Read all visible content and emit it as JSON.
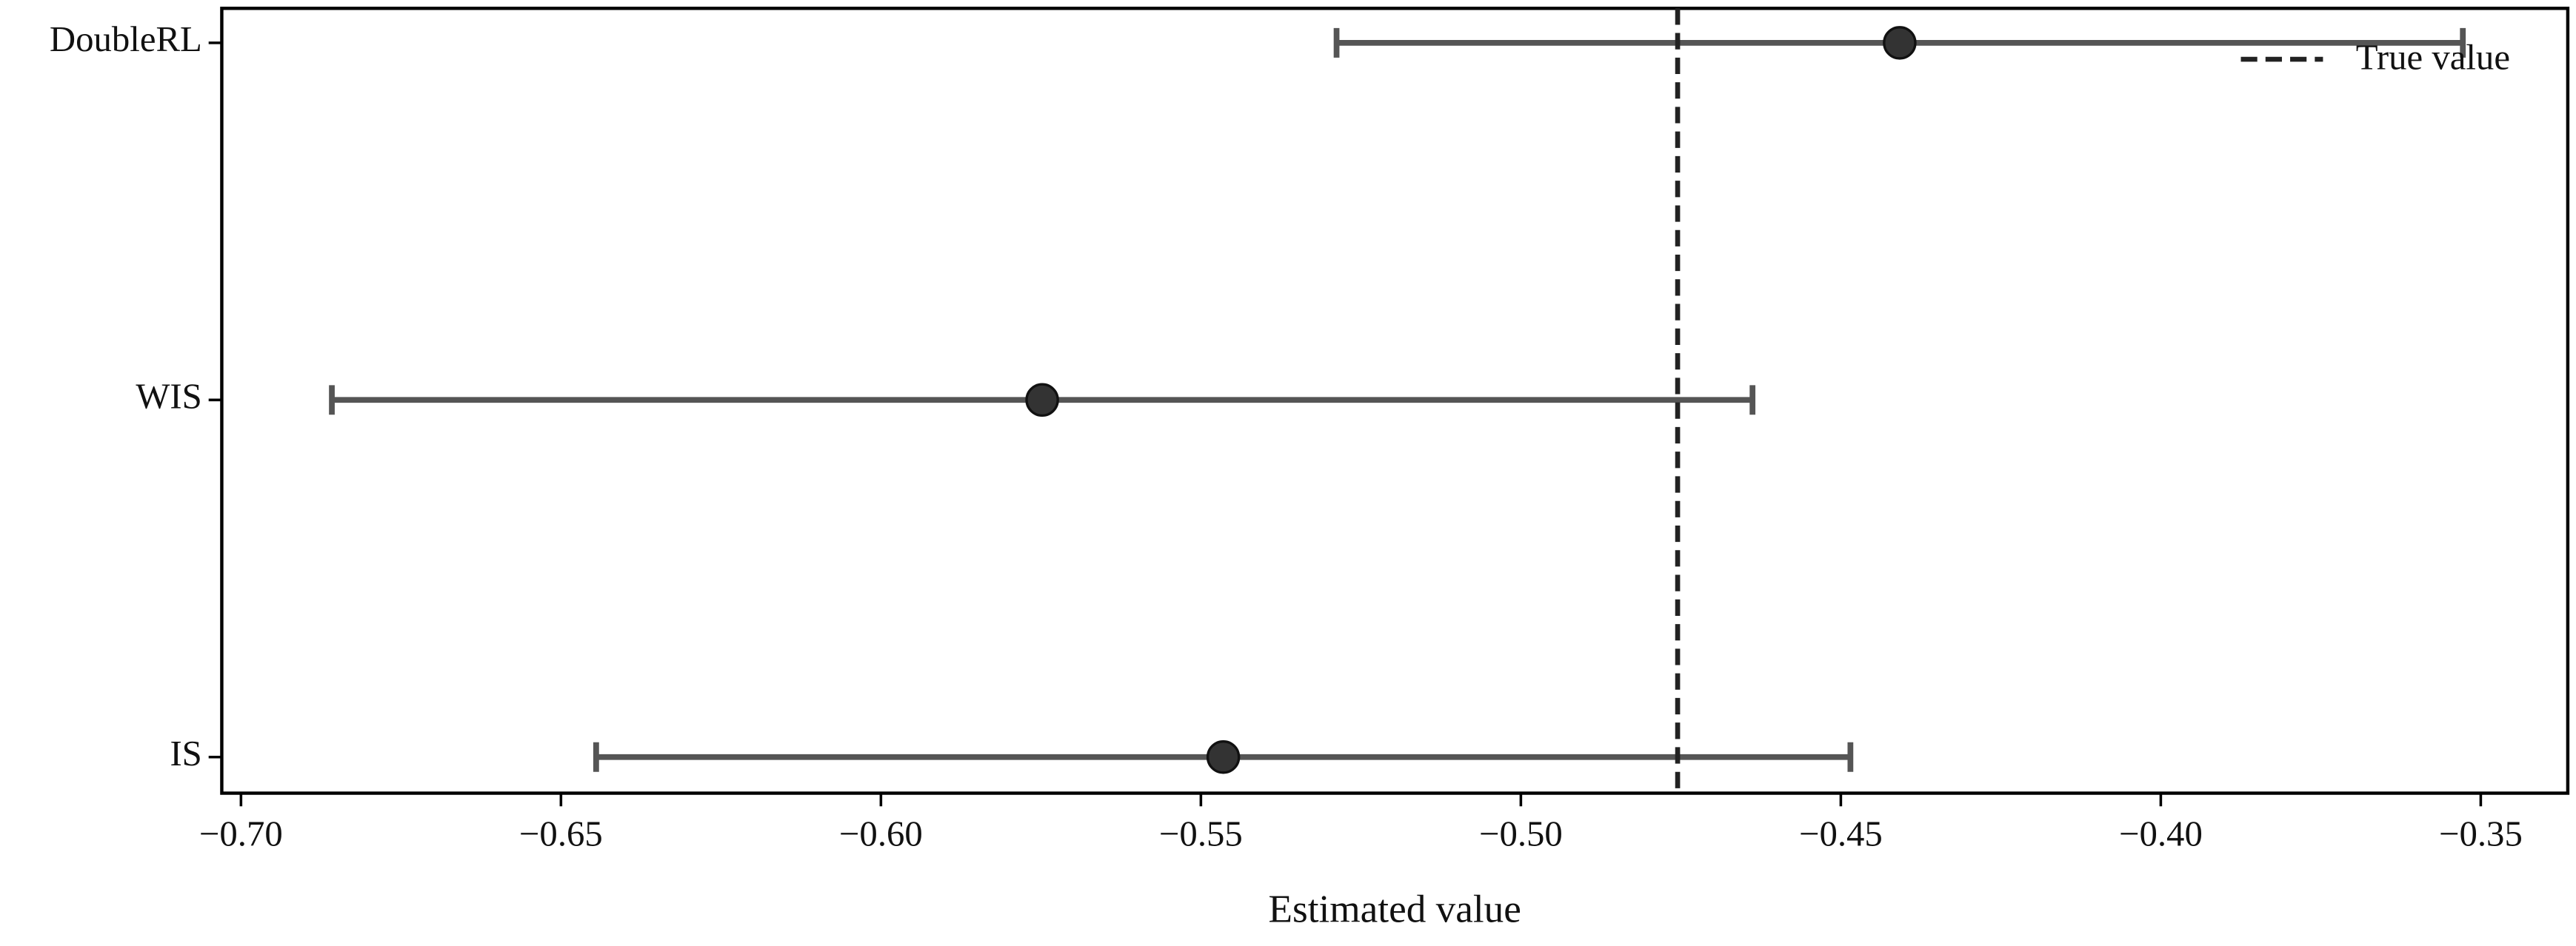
{
  "chart_data": {
    "type": "errorbar",
    "categories": [
      "DoubleRL",
      "WIS",
      "IS"
    ],
    "values": [
      -0.4408,
      -0.5748,
      -0.5465
    ],
    "errors": [
      0.088,
      0.111,
      0.098
    ],
    "color": "#555555",
    "marker_color": "#333333",
    "x_label": "Estimated value",
    "xlim": [
      -0.703,
      -0.3364
    ],
    "xticks": [
      {
        "value": -0.7,
        "label": "−0.70"
      },
      {
        "value": -0.65,
        "label": "−0.65"
      },
      {
        "value": -0.6,
        "label": "−0.60"
      },
      {
        "value": -0.55,
        "label": "−0.55"
      },
      {
        "value": -0.5,
        "label": "−0.50"
      },
      {
        "value": -0.45,
        "label": "−0.45"
      },
      {
        "value": -0.4,
        "label": "−0.40"
      },
      {
        "value": -0.35,
        "label": "−0.35"
      }
    ],
    "reference_line": {
      "value": -0.4755,
      "label": "True value",
      "color": "#222222"
    },
    "legend": "upper right"
  }
}
